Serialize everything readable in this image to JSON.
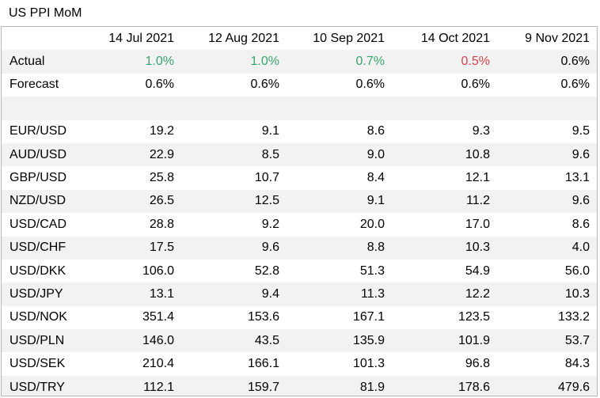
{
  "title": "US PPI MoM",
  "dates": [
    "14 Jul 2021",
    "12 Aug 2021",
    "10 Sep 2021",
    "14 Oct 2021",
    "9 Nov 2021"
  ],
  "actual": {
    "label": "Actual",
    "values": [
      "1.0%",
      "1.0%",
      "0.7%",
      "0.5%",
      "0.6%"
    ],
    "tones": [
      "green",
      "green",
      "green",
      "red",
      "none"
    ]
  },
  "forecast": {
    "label": "Forecast",
    "values": [
      "0.6%",
      "0.6%",
      "0.6%",
      "0.6%",
      "0.6%"
    ]
  },
  "colors": {
    "positive": "#3aa36d",
    "negative": "#d9434b",
    "band": "#f2f2f2",
    "border": "#b7b7b7"
  },
  "pairs": [
    {
      "pair": "EUR/USD",
      "values": [
        "19.2",
        "9.1",
        "8.6",
        "9.3",
        "9.5"
      ]
    },
    {
      "pair": "AUD/USD",
      "values": [
        "22.9",
        "8.5",
        "9.0",
        "10.8",
        "9.6"
      ]
    },
    {
      "pair": "GBP/USD",
      "values": [
        "25.8",
        "10.7",
        "8.4",
        "12.1",
        "13.1"
      ]
    },
    {
      "pair": "NZD/USD",
      "values": [
        "26.5",
        "12.5",
        "9.1",
        "11.2",
        "9.6"
      ]
    },
    {
      "pair": "USD/CAD",
      "values": [
        "28.8",
        "9.2",
        "20.0",
        "17.0",
        "8.6"
      ]
    },
    {
      "pair": "USD/CHF",
      "values": [
        "17.5",
        "9.6",
        "8.8",
        "10.3",
        "4.0"
      ]
    },
    {
      "pair": "USD/DKK",
      "values": [
        "106.0",
        "52.8",
        "51.3",
        "54.9",
        "56.0"
      ]
    },
    {
      "pair": "USD/JPY",
      "values": [
        "13.1",
        "9.4",
        "11.3",
        "12.2",
        "10.3"
      ]
    },
    {
      "pair": "USD/NOK",
      "values": [
        "351.4",
        "153.6",
        "167.1",
        "123.5",
        "133.2"
      ]
    },
    {
      "pair": "USD/PLN",
      "values": [
        "146.0",
        "43.5",
        "135.9",
        "101.9",
        "53.7"
      ]
    },
    {
      "pair": "USD/SEK",
      "values": [
        "210.4",
        "166.1",
        "101.3",
        "96.8",
        "84.3"
      ]
    },
    {
      "pair": "USD/TRY",
      "values": [
        "112.1",
        "159.7",
        "81.9",
        "178.6",
        "479.6"
      ]
    }
  ]
}
